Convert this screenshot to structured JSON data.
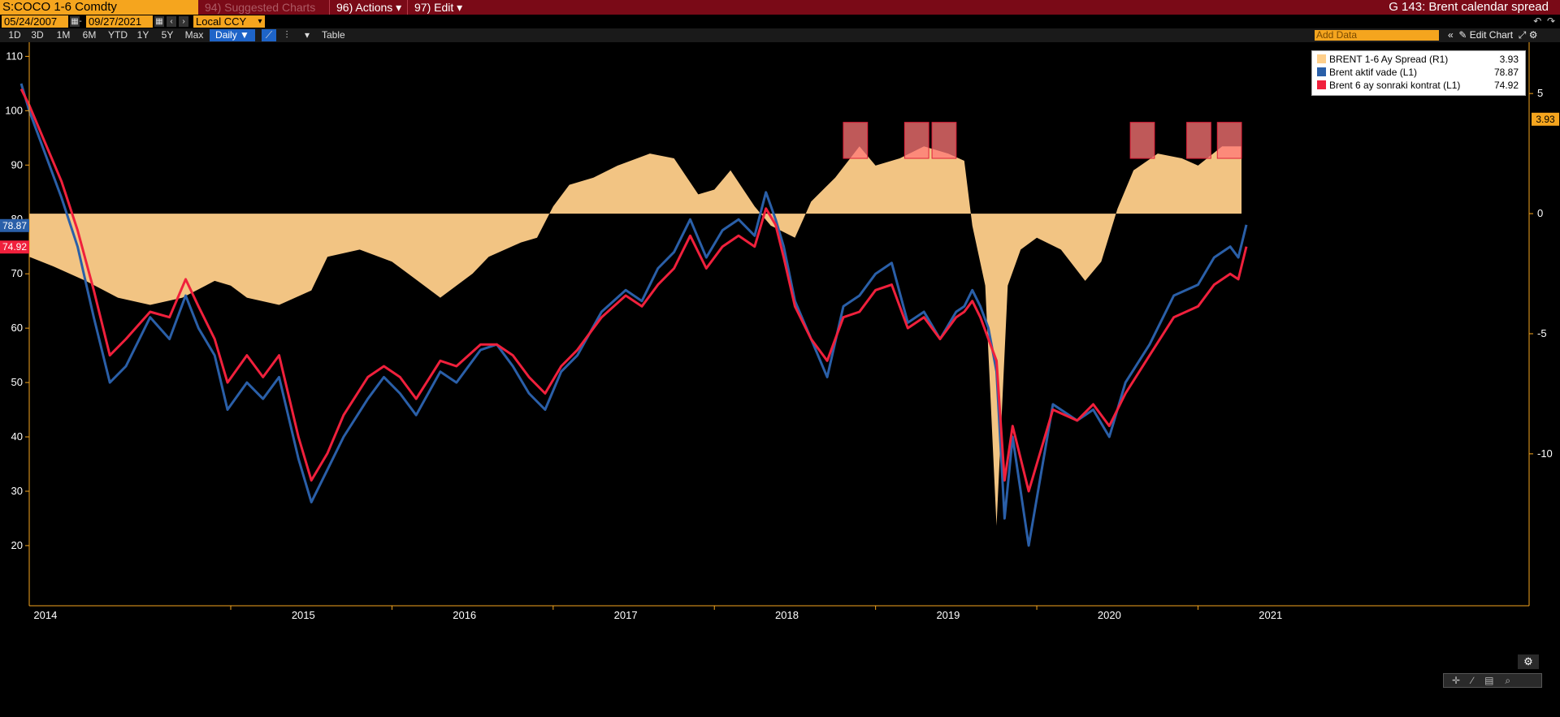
{
  "header": {
    "ticker": "S:COCO 1-6 Comdty",
    "menu": [
      "94) Suggested Charts",
      "96) Actions ▾",
      "97) Edit ▾"
    ],
    "window_title": "G 143: Brent calendar spread"
  },
  "controls": {
    "start_date": "05/24/2007",
    "end_date": "09/27/2021",
    "currency": "Local CCY",
    "ranges": [
      "1D",
      "3D",
      "1M",
      "6M",
      "YTD",
      "1Y",
      "5Y",
      "Max"
    ],
    "frequency": "Daily ▼",
    "table_label": "Table",
    "add_data_placeholder": "Add Data",
    "edit_chart": "Edit Chart"
  },
  "colors": {
    "spread": "#ffcf8a",
    "active": "#2a5fa8",
    "six_month": "#f0203c",
    "highlight": "#ff7777",
    "axis": "#f5a51e"
  },
  "chart_data": {
    "type": "line",
    "x_labels": [
      "2014",
      "2015",
      "2016",
      "2017",
      "2018",
      "2019",
      "2020",
      "2021"
    ],
    "y_left": {
      "range": [
        17,
        112
      ],
      "ticks": [
        20,
        30,
        40,
        50,
        60,
        70,
        80,
        90,
        100,
        110
      ]
    },
    "y_right": {
      "range": [
        -14.5,
        7
      ],
      "ticks": [
        5,
        0,
        -5,
        -10
      ]
    },
    "legend_position": "top-right",
    "series": [
      {
        "name": "BRENT 1-6 Ay Spread (R1)",
        "axis": "right",
        "kind": "area",
        "last": "3.93",
        "x": [
          2013.75,
          2013.9,
          2014.1,
          2014.3,
          2014.5,
          2014.7,
          2014.9,
          2015.0,
          2015.1,
          2015.3,
          2015.5,
          2015.6,
          2015.8,
          2016.0,
          2016.1,
          2016.3,
          2016.5,
          2016.6,
          2016.8,
          2016.9,
          2017.0,
          2017.1,
          2017.25,
          2017.4,
          2017.6,
          2017.75,
          2017.9,
          2018.0,
          2018.1,
          2018.25,
          2018.35,
          2018.5,
          2018.6,
          2018.75,
          2018.9,
          2019.0,
          2019.15,
          2019.3,
          2019.45,
          2019.55,
          2019.6,
          2019.68,
          2019.75,
          2019.82,
          2019.9,
          2020.0,
          2020.15,
          2020.3,
          2020.4,
          2020.5,
          2020.6,
          2020.75,
          2020.9,
          2021.0,
          2021.15,
          2021.27
        ],
        "y": [
          -1.8,
          -2.2,
          -2.8,
          -3.5,
          -3.8,
          -3.5,
          -2.8,
          -3.0,
          -3.5,
          -3.8,
          -3.2,
          -1.8,
          -1.5,
          -2.0,
          -2.5,
          -3.5,
          -2.5,
          -1.8,
          -1.2,
          -1.0,
          0.3,
          1.2,
          1.5,
          2.0,
          2.5,
          2.3,
          0.8,
          1.0,
          1.8,
          0.3,
          -0.5,
          -1.0,
          0.5,
          1.5,
          2.8,
          2.0,
          2.3,
          2.8,
          2.5,
          2.2,
          -0.5,
          -3.0,
          -13.0,
          -3.0,
          -1.5,
          -1.0,
          -1.5,
          -2.8,
          -2.0,
          0.2,
          1.8,
          2.5,
          2.3,
          2.0,
          2.8,
          2.8
        ]
      },
      {
        "name": "Brent aktif vade (L1)",
        "axis": "left",
        "kind": "line",
        "last": "78.87",
        "x": [
          2013.7,
          2013.75,
          2013.85,
          2013.95,
          2014.05,
          2014.15,
          2014.25,
          2014.35,
          2014.5,
          2014.62,
          2014.72,
          2014.8,
          2014.9,
          2014.98,
          2015.1,
          2015.2,
          2015.3,
          2015.42,
          2015.5,
          2015.6,
          2015.7,
          2015.85,
          2015.95,
          2016.05,
          2016.15,
          2016.3,
          2016.4,
          2016.55,
          2016.65,
          2016.75,
          2016.85,
          2016.95,
          2017.05,
          2017.15,
          2017.3,
          2017.45,
          2017.55,
          2017.65,
          2017.75,
          2017.85,
          2017.95,
          2018.05,
          2018.15,
          2018.25,
          2018.32,
          2018.38,
          2018.43,
          2018.5,
          2018.6,
          2018.7,
          2018.8,
          2018.9,
          2019.0,
          2019.1,
          2019.2,
          2019.3,
          2019.4,
          2019.5,
          2019.55,
          2019.6,
          2019.65,
          2019.7,
          2019.75,
          2019.8,
          2019.85,
          2019.95,
          2020.1,
          2020.25,
          2020.35,
          2020.45,
          2020.55,
          2020.7,
          2020.85,
          2021.0,
          2021.1,
          2021.2,
          2021.25,
          2021.3
        ],
        "y": [
          105,
          100,
          92,
          84,
          75,
          62,
          50,
          53,
          62,
          58,
          66,
          60,
          55,
          45,
          50,
          47,
          51,
          36,
          28,
          34,
          40,
          47,
          51,
          48,
          44,
          52,
          50,
          56,
          57,
          53,
          48,
          45,
          52,
          55,
          63,
          67,
          65,
          71,
          74,
          80,
          73,
          78,
          80,
          77,
          85,
          80,
          75,
          65,
          58,
          51,
          64,
          66,
          70,
          72,
          61,
          63,
          58,
          63,
          64,
          67,
          64,
          60,
          52,
          25,
          40,
          20,
          46,
          43,
          45,
          40,
          50,
          57,
          66,
          68,
          73,
          75,
          73,
          79
        ]
      },
      {
        "name": "Brent 6 ay sonraki kontrat (L1)",
        "axis": "left",
        "kind": "line",
        "last": "74.92",
        "x": [
          2013.7,
          2013.75,
          2013.85,
          2013.95,
          2014.05,
          2014.15,
          2014.25,
          2014.35,
          2014.5,
          2014.62,
          2014.72,
          2014.8,
          2014.9,
          2014.98,
          2015.1,
          2015.2,
          2015.3,
          2015.42,
          2015.5,
          2015.6,
          2015.7,
          2015.85,
          2015.95,
          2016.05,
          2016.15,
          2016.3,
          2016.4,
          2016.55,
          2016.65,
          2016.75,
          2016.85,
          2016.95,
          2017.05,
          2017.15,
          2017.3,
          2017.45,
          2017.55,
          2017.65,
          2017.75,
          2017.85,
          2017.95,
          2018.05,
          2018.15,
          2018.25,
          2018.32,
          2018.38,
          2018.43,
          2018.5,
          2018.6,
          2018.7,
          2018.8,
          2018.9,
          2019.0,
          2019.1,
          2019.2,
          2019.3,
          2019.4,
          2019.5,
          2019.55,
          2019.6,
          2019.65,
          2019.7,
          2019.75,
          2019.8,
          2019.85,
          2019.95,
          2020.1,
          2020.25,
          2020.35,
          2020.45,
          2020.55,
          2020.7,
          2020.85,
          2021.0,
          2021.1,
          2021.2,
          2021.25,
          2021.3
        ],
        "y": [
          104,
          101,
          94,
          87,
          78,
          67,
          55,
          58,
          63,
          62,
          69,
          64,
          58,
          50,
          55,
          51,
          55,
          40,
          32,
          37,
          44,
          51,
          53,
          51,
          47,
          54,
          53,
          57,
          57,
          55,
          51,
          48,
          53,
          56,
          62,
          66,
          64,
          68,
          71,
          77,
          71,
          75,
          77,
          75,
          82,
          79,
          73,
          64,
          58,
          54,
          62,
          63,
          67,
          68,
          60,
          62,
          58,
          62,
          63,
          65,
          62,
          58,
          54,
          32,
          42,
          30,
          45,
          43,
          46,
          42,
          48,
          55,
          62,
          64,
          68,
          70,
          69,
          75
        ]
      }
    ],
    "highlights_y_range": [
      2.3,
      3.8
    ],
    "highlights_x": [
      [
        2018.8,
        2018.95
      ],
      [
        2019.18,
        2019.33
      ],
      [
        2019.35,
        2019.5
      ],
      [
        2020.58,
        2020.73
      ],
      [
        2020.93,
        2021.08
      ],
      [
        2021.12,
        2021.27
      ]
    ],
    "value_tags": [
      {
        "text": "78.87",
        "color": "#2a5fa8",
        "value": 78.87,
        "axis": "left"
      },
      {
        "text": "74.92",
        "color": "#f0203c",
        "value": 74.92,
        "axis": "left"
      },
      {
        "text": "3.93",
        "color": "#f5a51e",
        "value": 3.93,
        "axis": "right"
      }
    ]
  }
}
